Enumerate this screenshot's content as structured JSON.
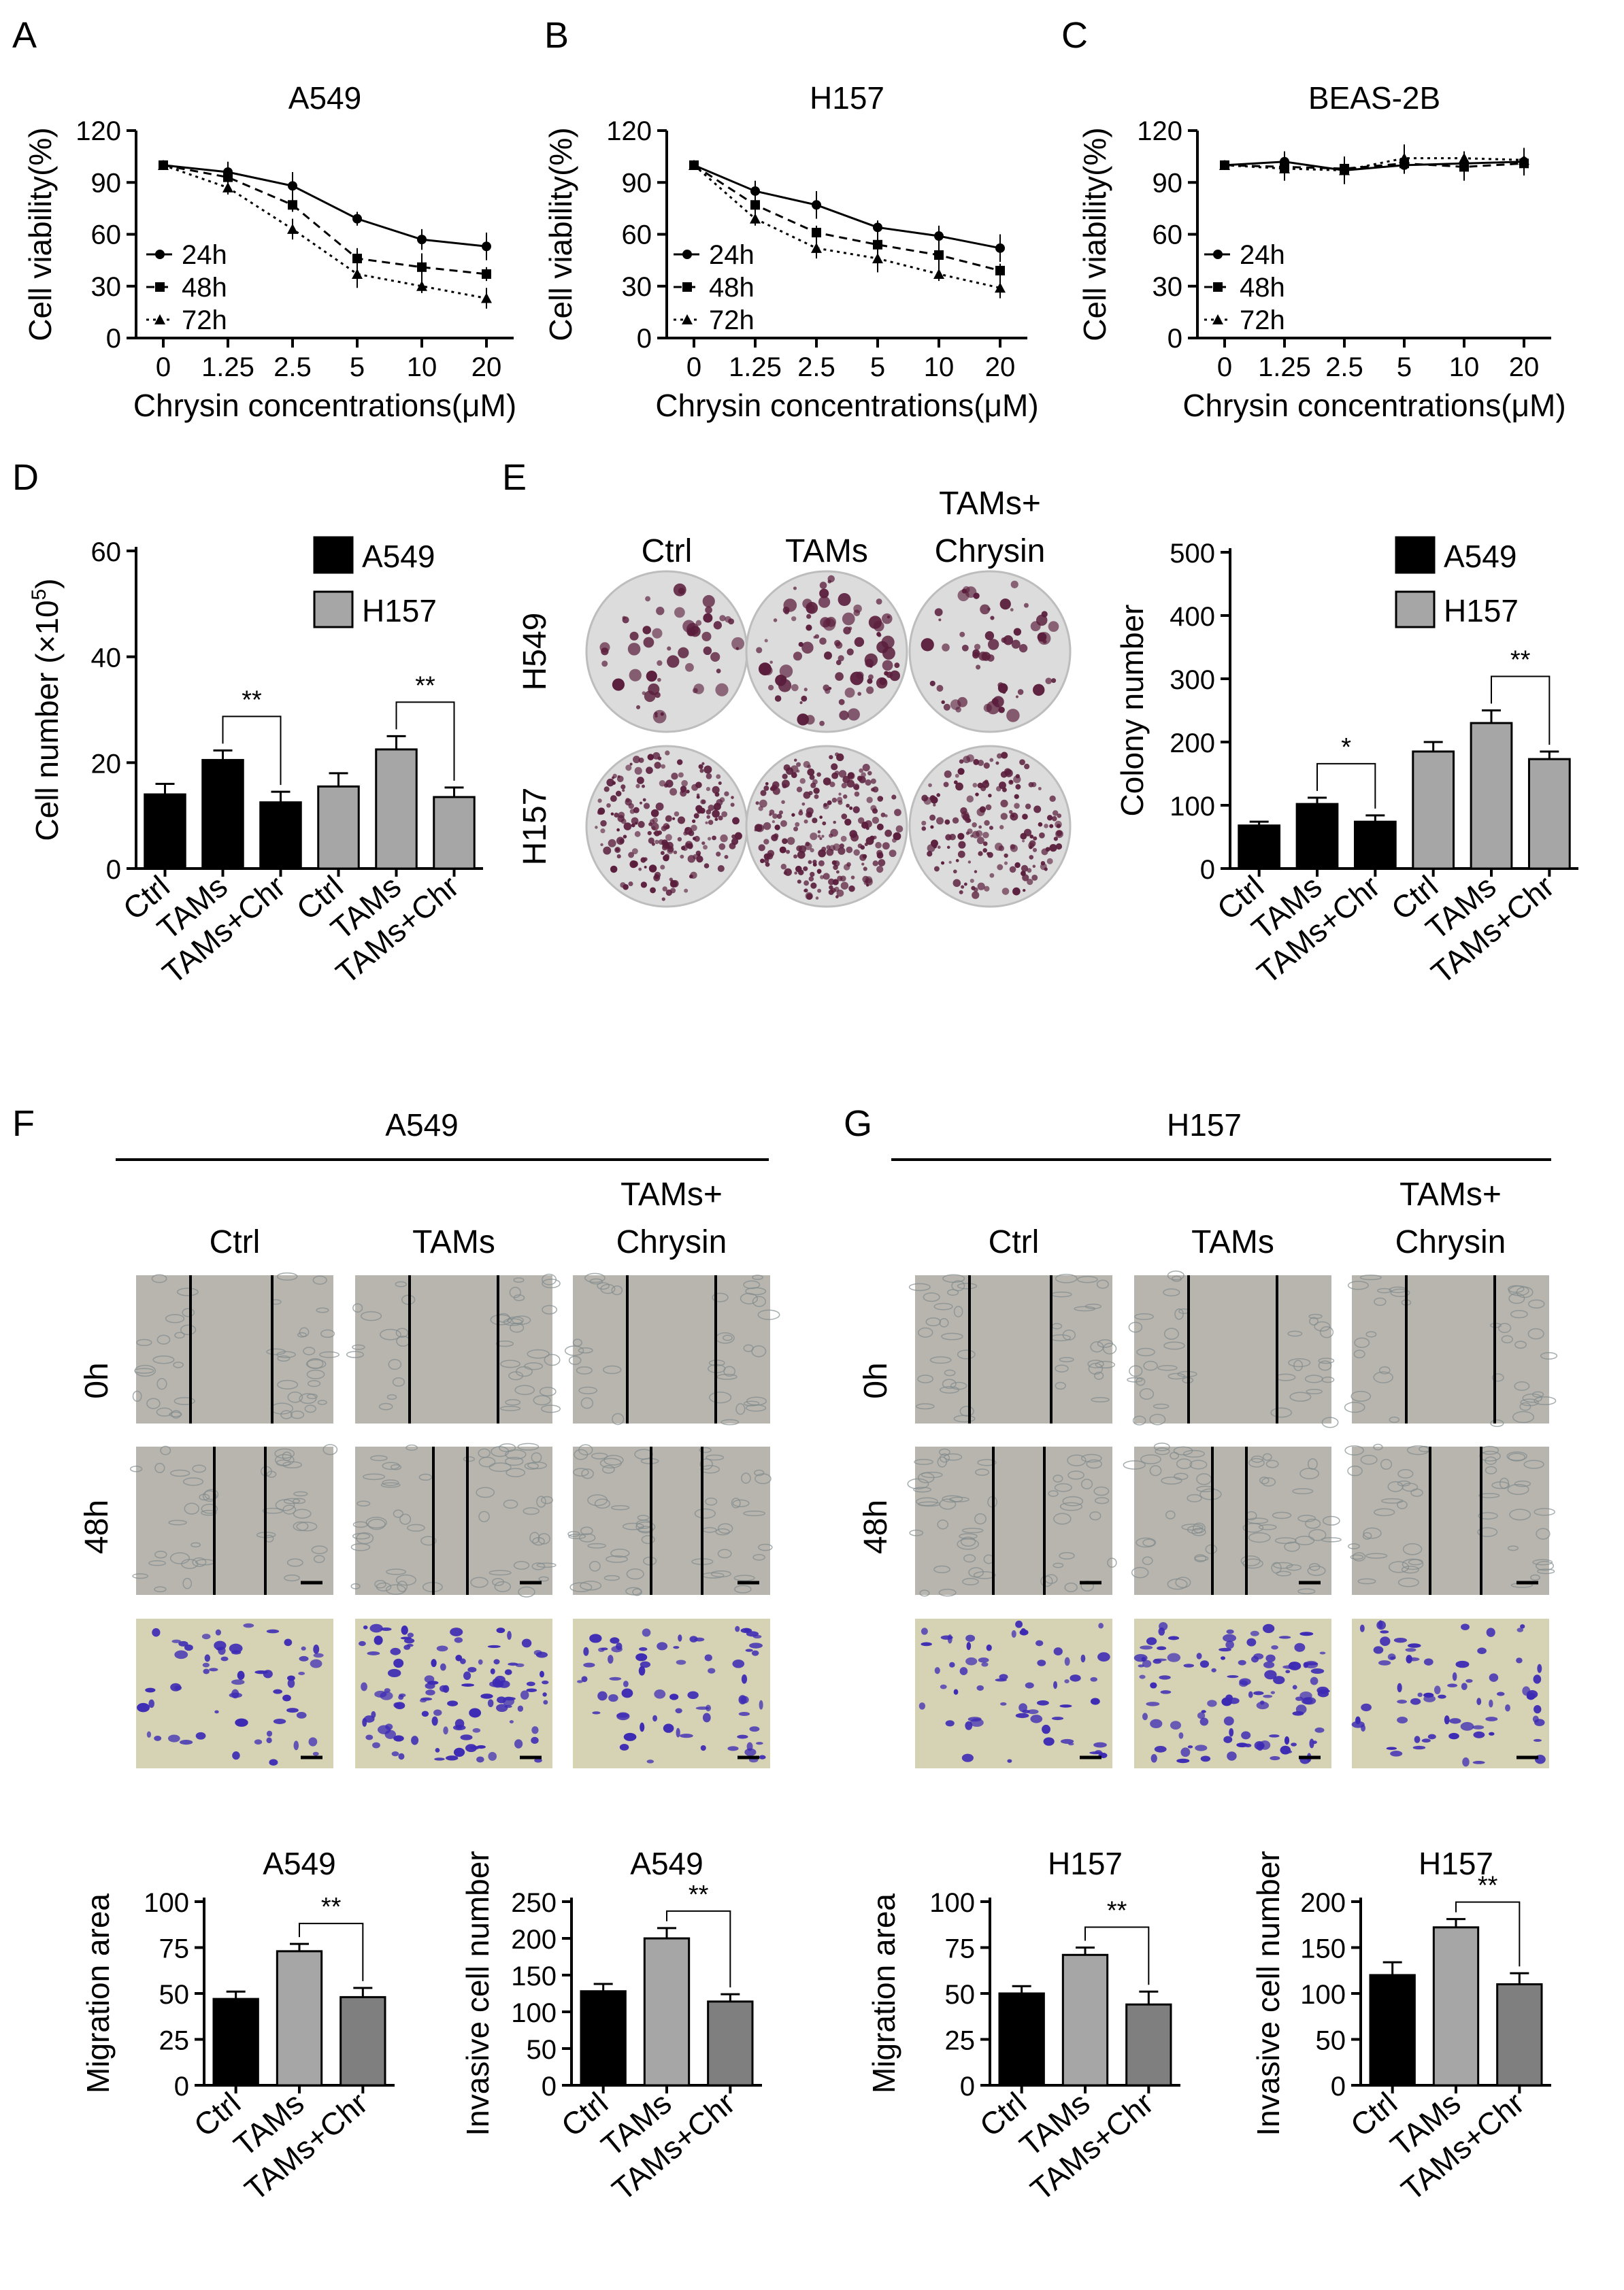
{
  "panel_letters": [
    "A",
    "B",
    "C",
    "D",
    "E",
    "F",
    "G"
  ],
  "line_legend": [
    "24h",
    "48h",
    "72h"
  ],
  "labels": {
    "cell_viability": "Cell viability(%)",
    "chrysin_conc": "Chrysin concentrations(μM)",
    "cell_number": "Cell number (×10",
    "cell_number_sup": "5",
    "cell_number_end": ")",
    "colony_number": "Colony number",
    "migration_area": "Migration area",
    "invasive_cell_number": "Invasive cell number"
  },
  "images": {
    "E_cols": [
      "Ctrl",
      "TAMs",
      "TAMs+",
      "Chrysin"
    ],
    "E_rows": [
      "H549",
      "H157"
    ],
    "F_header": "A549",
    "G_header": "H157",
    "FG_cols": [
      "Ctrl",
      "TAMs",
      "TAMs+",
      "Chrysin"
    ],
    "FG_rows": [
      "0h",
      "48h"
    ]
  },
  "colors": {
    "black": "#000000",
    "light_gray": "#a6a6a6",
    "mid_gray": "#7f7f7f",
    "plate": "#dcdcdc",
    "colony": "#5a1e3c",
    "wound_bg": "#b8b4ae",
    "invasion_bg": "#d6d2b4",
    "invasion_cell": "#3c2ab4"
  },
  "chart_data": [
    {
      "id": "A",
      "type": "line",
      "title": "A549",
      "xlabel": "Chrysin concentrations(μM)",
      "ylabel": "Cell viability(%)",
      "categories": [
        "0",
        "1.25",
        "2.5",
        "5",
        "10",
        "20"
      ],
      "yticks": [
        "0",
        "30",
        "60",
        "90",
        "120"
      ],
      "ylim": [
        0,
        120
      ],
      "legend": "left-inside",
      "series": [
        {
          "name": "24h",
          "values": [
            100,
            96,
            88,
            69,
            57,
            53
          ]
        },
        {
          "name": "48h",
          "values": [
            100,
            93,
            77,
            46,
            41,
            37
          ]
        },
        {
          "name": "72h",
          "values": [
            100,
            87,
            63,
            37,
            30,
            23
          ]
        }
      ]
    },
    {
      "id": "B",
      "type": "line",
      "title": "H157",
      "xlabel": "Chrysin concentrations(μM)",
      "ylabel": "Cell viability(%)",
      "categories": [
        "0",
        "1.25",
        "2.5",
        "5",
        "10",
        "20"
      ],
      "yticks": [
        "0",
        "30",
        "60",
        "90",
        "120"
      ],
      "ylim": [
        0,
        120
      ],
      "legend": "left-inside",
      "series": [
        {
          "name": "24h",
          "values": [
            100,
            85,
            77,
            64,
            59,
            52
          ]
        },
        {
          "name": "48h",
          "values": [
            100,
            77,
            61,
            54,
            48,
            39
          ]
        },
        {
          "name": "72h",
          "values": [
            100,
            69,
            52,
            46,
            37,
            29
          ]
        }
      ]
    },
    {
      "id": "C",
      "type": "line",
      "title": "BEAS-2B",
      "xlabel": "Chrysin concentrations(μM)",
      "ylabel": "Cell viability(%)",
      "categories": [
        "0",
        "1.25",
        "2.5",
        "5",
        "10",
        "20"
      ],
      "yticks": [
        "0",
        "30",
        "60",
        "90",
        "120"
      ],
      "ylim": [
        0,
        120
      ],
      "legend": "left-inside",
      "series": [
        {
          "name": "24h",
          "values": [
            100,
            102,
            97,
            100,
            101,
            102
          ]
        },
        {
          "name": "48h",
          "values": [
            100,
            99,
            98,
            101,
            99,
            101
          ]
        },
        {
          "name": "72h",
          "values": [
            100,
            98,
            97,
            104,
            104,
            103
          ]
        }
      ]
    },
    {
      "id": "D",
      "type": "bar",
      "ylabel": "Cell number (×10^5)",
      "categories": [
        "Ctrl",
        "TAMs",
        "TAMs+Chr",
        "Ctrl",
        "TAMs",
        "TAMs+Chr"
      ],
      "values": [
        14,
        20.5,
        12.5,
        15.5,
        22.5,
        13.5
      ],
      "errors": [
        2,
        1.8,
        2,
        2.5,
        2.5,
        1.8
      ],
      "yticks": [
        "0",
        "20",
        "40",
        "60"
      ],
      "ylim": [
        0,
        60
      ],
      "legend": [
        "A549",
        "H157"
      ],
      "significance": [
        {
          "from": 1,
          "to": 2,
          "label": "**"
        },
        {
          "from": 4,
          "to": 5,
          "label": "**"
        }
      ]
    },
    {
      "id": "E",
      "type": "bar",
      "ylabel": "Colony number",
      "categories": [
        "Ctrl",
        "TAMs",
        "TAMs+Chr",
        "Ctrl",
        "TAMs",
        "TAMs+Chr"
      ],
      "values": [
        68,
        102,
        74,
        185,
        230,
        173
      ],
      "errors": [
        6,
        10,
        10,
        15,
        20,
        12
      ],
      "yticks": [
        "0",
        "100",
        "200",
        "300",
        "400",
        "500"
      ],
      "ylim": [
        0,
        500
      ],
      "legend": [
        "A549",
        "H157"
      ],
      "significance": [
        {
          "from": 1,
          "to": 2,
          "label": "*"
        },
        {
          "from": 4,
          "to": 5,
          "label": "**"
        }
      ]
    },
    {
      "id": "F-mig",
      "type": "bar",
      "title": "A549",
      "ylabel": "Migration area",
      "categories": [
        "Ctrl",
        "TAMs",
        "TAMs+Chr"
      ],
      "values": [
        47,
        73,
        48
      ],
      "errors": [
        4,
        4,
        5
      ],
      "yticks": [
        "0",
        "25",
        "50",
        "75",
        "100"
      ],
      "ylim": [
        0,
        100
      ],
      "significance": [
        {
          "from": 1,
          "to": 2,
          "label": "**"
        }
      ]
    },
    {
      "id": "F-inv",
      "type": "bar",
      "title": "A549",
      "ylabel": "Invasive cell number",
      "categories": [
        "Ctrl",
        "TAMs",
        "TAMs+Chr"
      ],
      "values": [
        128,
        200,
        114
      ],
      "errors": [
        10,
        14,
        10
      ],
      "yticks": [
        "0",
        "50",
        "100",
        "150",
        "200",
        "250"
      ],
      "ylim": [
        0,
        250
      ],
      "significance": [
        {
          "from": 1,
          "to": 2,
          "label": "**"
        }
      ]
    },
    {
      "id": "G-mig",
      "type": "bar",
      "title": "H157",
      "ylabel": "Migration area",
      "categories": [
        "Ctrl",
        "TAMs",
        "TAMs+Chr"
      ],
      "values": [
        50,
        71,
        44
      ],
      "errors": [
        4,
        4,
        7
      ],
      "yticks": [
        "0",
        "25",
        "50",
        "75",
        "100"
      ],
      "ylim": [
        0,
        100
      ],
      "significance": [
        {
          "from": 1,
          "to": 2,
          "label": "**"
        }
      ]
    },
    {
      "id": "G-inv",
      "type": "bar",
      "title": "H157",
      "ylabel": "Invasive cell number",
      "categories": [
        "Ctrl",
        "TAMs",
        "TAMs+Chr"
      ],
      "values": [
        120,
        172,
        110
      ],
      "errors": [
        14,
        9,
        12
      ],
      "yticks": [
        "0",
        "50",
        "100",
        "150",
        "200"
      ],
      "ylim": [
        0,
        200
      ],
      "significance": [
        {
          "from": 1,
          "to": 2,
          "label": "**"
        }
      ]
    }
  ]
}
